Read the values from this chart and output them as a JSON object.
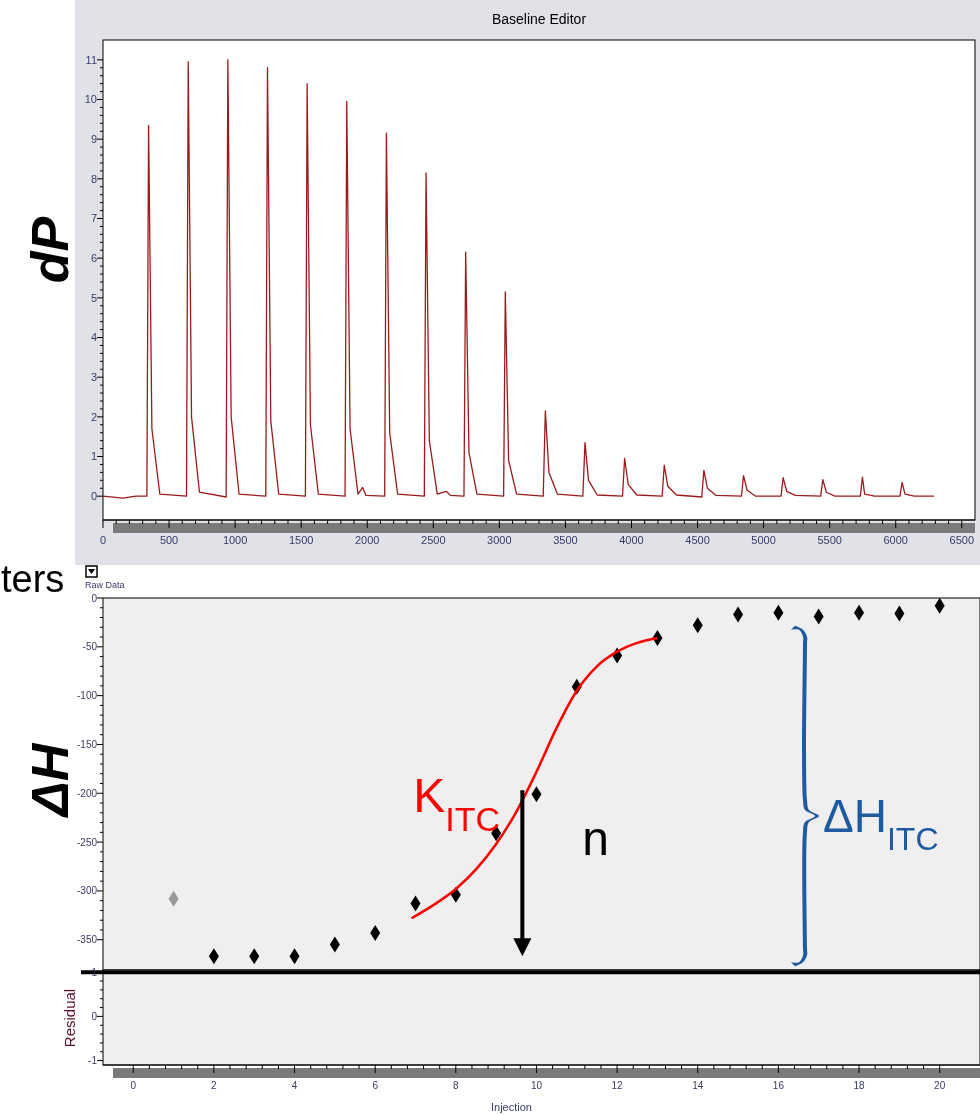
{
  "chart_data": [
    {
      "type": "line",
      "title": "Baseline Editor",
      "ylabel": "dP",
      "xlim": [
        0,
        6600
      ],
      "xticks": [
        0,
        500,
        1000,
        1500,
        2000,
        2500,
        3000,
        3500,
        4000,
        4500,
        5000,
        5500,
        6000,
        6500
      ],
      "ylim": [
        -0.6,
        11.5
      ],
      "yticks": [
        0,
        1,
        2,
        3,
        4,
        5,
        6,
        7,
        8,
        9,
        10,
        11
      ],
      "line_style": "solid",
      "series": [
        {
          "color": "#9b1b1b",
          "x": [
            0,
            150,
            250,
            332,
            345,
            370,
            430,
            632,
            645,
            670,
            730,
            932,
            945,
            970,
            1030,
            1232,
            1245,
            1270,
            1330,
            1532,
            1545,
            1570,
            1630,
            1832,
            1845,
            1870,
            1930,
            1965,
            1990,
            2132,
            2145,
            2170,
            2230,
            2432,
            2445,
            2470,
            2530,
            2600,
            2630,
            2732,
            2745,
            2770,
            2830,
            3032,
            3045,
            3070,
            3130,
            3332,
            3348,
            3375,
            3440,
            3632,
            3648,
            3675,
            3740,
            3932,
            3948,
            3975,
            4040,
            4232,
            4248,
            4275,
            4340,
            4532,
            4548,
            4575,
            4640,
            4832,
            4848,
            4875,
            4940,
            5132,
            5148,
            5175,
            5240,
            5432,
            5448,
            5475,
            5540,
            5732,
            5748,
            5765,
            5840,
            6032,
            6048,
            6070,
            6140,
            6290
          ],
          "values": [
            0,
            -0.05,
            0,
            0,
            9.35,
            1.7,
            0.05,
            0,
            10.95,
            2.0,
            0.1,
            -0.02,
            11.0,
            2.0,
            0.05,
            0,
            10.8,
            1.9,
            0.05,
            0,
            10.4,
            1.8,
            0.05,
            0,
            9.95,
            1.7,
            0.05,
            0.22,
            0.02,
            0,
            9.15,
            1.6,
            0.05,
            0,
            8.15,
            1.4,
            0.05,
            0.12,
            0.02,
            0,
            6.15,
            1.1,
            0.05,
            0,
            5.15,
            0.9,
            0.05,
            0,
            2.15,
            0.6,
            0.05,
            0,
            1.35,
            0.4,
            0.03,
            0,
            0.95,
            0.3,
            0.03,
            0,
            0.78,
            0.25,
            0.03,
            -0.02,
            0.65,
            0.2,
            0.02,
            0,
            0.52,
            0.15,
            0,
            0,
            0.47,
            0.12,
            0.02,
            0,
            0.42,
            0.1,
            0,
            0,
            0.48,
            0.05,
            0,
            0,
            0.35,
            0.05,
            0,
            0
          ]
        }
      ]
    },
    {
      "type": "scatter",
      "ylabel": "ΔH",
      "xlim": [
        -0.75,
        21
      ],
      "xticks": [
        0,
        2,
        4,
        6,
        8,
        10,
        12,
        14,
        16,
        18,
        20
      ],
      "ylim": [
        -381,
        0
      ],
      "yticks": [
        0,
        -50,
        -100,
        -150,
        -200,
        -250,
        -300,
        -350
      ],
      "tick_labels": "y",
      "annotations": [
        "ters",
        "Raw Data",
        "K$_{ITC}$",
        {
          "text": "n",
          "x": 9.65,
          "y": -197
        },
        "ΔH$_{ITC}$"
      ],
      "series": [
        {
          "marker": "diamond",
          "x": [
            1,
            2,
            3,
            4,
            5,
            6,
            7,
            8,
            9,
            10,
            11,
            12,
            13,
            14,
            15,
            16,
            17,
            18,
            19,
            20
          ],
          "values": [
            -308,
            -367,
            -367,
            -367,
            -355,
            -343,
            -313,
            -304,
            -241,
            -201,
            -91,
            -59,
            -41,
            -28,
            -17,
            -15,
            -19,
            -15,
            -16,
            -8
          ],
          "colors": [
            "#999999",
            "#000000",
            "#000000",
            "#000000",
            "#000000",
            "#000000",
            "#000000",
            "#000000",
            "#000000",
            "#000000",
            "#000000",
            "#000000",
            "#000000",
            "#000000",
            "#000000",
            "#000000",
            "#000000",
            "#000000",
            "#000000",
            "#000000"
          ]
        },
        {
          "type": "line",
          "color": "#ff0000",
          "x": [
            6.9,
            7.5,
            8,
            8.5,
            9,
            9.5,
            10,
            10.5,
            11,
            11.5,
            12,
            12.5,
            13
          ],
          "values": [
            -328,
            -313,
            -298,
            -278,
            -252,
            -219,
            -178,
            -133,
            -95,
            -70,
            -55,
            -46,
            -41
          ]
        }
      ]
    },
    {
      "type": "line",
      "ylabel": "Residual",
      "xlabel": "Injection",
      "xlim": [
        -0.75,
        21
      ],
      "xticks": [
        0,
        2,
        4,
        6,
        8,
        10,
        12,
        14,
        16,
        18,
        20
      ],
      "ylim": [
        -1.1,
        1.05
      ],
      "yticks": [
        -1,
        0,
        1
      ],
      "ref_lines": [
        {
          "axis": "y",
          "value": 1,
          "color": "#000000"
        }
      ]
    }
  ]
}
